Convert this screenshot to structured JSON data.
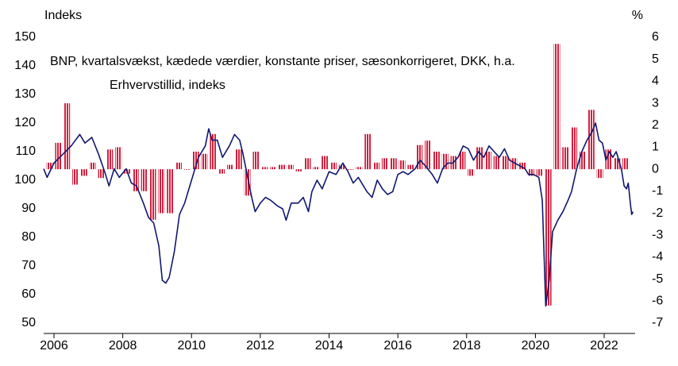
{
  "chart_data": {
    "type": "bar_line",
    "y_label": "Indeks",
    "y2_label": "%",
    "xlim": [
      2005.7,
      2022.9
    ],
    "xticks": [
      2006,
      2008,
      2010,
      2012,
      2014,
      2016,
      2018,
      2020,
      2022
    ],
    "ylim": [
      50,
      150
    ],
    "yticks": [
      50,
      60,
      70,
      80,
      90,
      100,
      110,
      120,
      130,
      140,
      150
    ],
    "y2lim": [
      -7,
      6
    ],
    "y2ticks": [
      -7,
      -6,
      -5,
      -4,
      -3,
      -2,
      -1,
      0,
      1,
      2,
      3,
      4,
      5,
      6
    ],
    "series": [
      {
        "name": "BNP, kvartalsvækst, kædede værdier, konstante priser, sæsonkorrigeret, DKK, h.a.",
        "type": "bar",
        "axis": "y2",
        "color": "#d0213f",
        "x": [
          2005.875,
          2006.125,
          2006.375,
          2006.625,
          2006.875,
          2007.125,
          2007.375,
          2007.625,
          2007.875,
          2008.125,
          2008.375,
          2008.625,
          2008.875,
          2009.125,
          2009.375,
          2009.625,
          2009.875,
          2010.125,
          2010.375,
          2010.625,
          2010.875,
          2011.125,
          2011.375,
          2011.625,
          2011.875,
          2012.125,
          2012.375,
          2012.625,
          2012.875,
          2013.125,
          2013.375,
          2013.625,
          2013.875,
          2014.125,
          2014.375,
          2014.625,
          2014.875,
          2015.125,
          2015.375,
          2015.625,
          2015.875,
          2016.125,
          2016.375,
          2016.625,
          2016.875,
          2017.125,
          2017.375,
          2017.625,
          2017.875,
          2018.125,
          2018.375,
          2018.625,
          2018.875,
          2019.125,
          2019.375,
          2019.625,
          2019.875,
          2020.125,
          2020.375,
          2020.625,
          2020.875,
          2021.125,
          2021.375,
          2021.625,
          2021.875,
          2022.125,
          2022.375,
          2022.625
        ],
        "values": [
          0.3,
          1.2,
          3.0,
          -0.7,
          -0.3,
          0.3,
          -0.4,
          0.9,
          1.0,
          -0.2,
          -1.0,
          -1.0,
          -2.3,
          -2.0,
          -2.0,
          0.3,
          0.0,
          0.8,
          0.7,
          1.6,
          -0.2,
          0.2,
          0.9,
          -1.2,
          0.8,
          0.1,
          0.1,
          0.2,
          0.2,
          -0.1,
          0.5,
          0.1,
          0.6,
          0.3,
          0.2,
          0.0,
          0.1,
          1.6,
          0.3,
          0.5,
          0.5,
          0.4,
          0.2,
          1.1,
          1.3,
          0.8,
          0.7,
          0.6,
          0.8,
          -0.3,
          1.0,
          0.8,
          0.6,
          0.6,
          0.5,
          0.3,
          -0.3,
          -0.3,
          -6.2,
          5.7,
          1.0,
          1.9,
          0.8,
          2.7,
          -0.4,
          0.9,
          0.5,
          0.5
        ]
      },
      {
        "name": "Erhvervstillid, indeks",
        "type": "line",
        "axis": "y",
        "color": "#10186e",
        "x": [
          2005.7,
          2005.8,
          2006.0,
          2006.25,
          2006.5,
          2006.75,
          2006.9,
          2007.1,
          2007.3,
          2007.5,
          2007.6,
          2007.75,
          2007.9,
          2008.1,
          2008.25,
          2008.4,
          2008.6,
          2008.75,
          2008.9,
          2009.05,
          2009.15,
          2009.25,
          2009.35,
          2009.5,
          2009.65,
          2009.8,
          2010.0,
          2010.2,
          2010.4,
          2010.5,
          2010.6,
          2010.75,
          2010.9,
          2011.1,
          2011.25,
          2011.4,
          2011.5,
          2011.6,
          2011.75,
          2011.85,
          2012.0,
          2012.15,
          2012.3,
          2012.5,
          2012.65,
          2012.75,
          2012.9,
          2013.1,
          2013.25,
          2013.4,
          2013.5,
          2013.65,
          2013.8,
          2014.0,
          2014.2,
          2014.4,
          2014.55,
          2014.7,
          2014.85,
          2015.0,
          2015.1,
          2015.25,
          2015.4,
          2015.55,
          2015.7,
          2015.85,
          2016.0,
          2016.15,
          2016.3,
          2016.5,
          2016.65,
          2016.8,
          2017.0,
          2017.15,
          2017.3,
          2017.45,
          2017.6,
          2017.75,
          2017.9,
          2018.05,
          2018.2,
          2018.35,
          2018.5,
          2018.65,
          2018.8,
          2018.95,
          2019.1,
          2019.25,
          2019.4,
          2019.55,
          2019.7,
          2019.8,
          2019.95,
          2020.1,
          2020.2,
          2020.3,
          2020.4,
          2020.5,
          2020.65,
          2020.8,
          2020.95,
          2021.05,
          2021.2,
          2021.35,
          2021.5,
          2021.65,
          2021.75,
          2021.85,
          2021.95,
          2022.05,
          2022.15,
          2022.25,
          2022.35,
          2022.5,
          2022.58,
          2022.65,
          2022.7,
          2022.76,
          2022.8,
          2022.84
        ],
        "values": [
          104,
          101,
          106,
          109,
          112,
          116,
          113,
          115,
          109,
          102,
          98,
          104,
          101,
          104,
          99,
          98,
          92,
          87,
          85,
          77,
          65,
          64,
          66,
          75,
          88,
          92,
          100,
          108,
          112,
          118,
          114,
          114,
          108,
          112,
          116,
          114,
          109,
          103,
          94,
          89,
          92,
          94,
          93,
          91,
          90,
          86,
          92,
          92,
          94,
          89,
          96,
          100,
          97,
          103,
          102,
          106,
          103,
          99,
          101,
          98,
          96,
          94,
          100,
          97,
          95,
          96,
          102,
          103,
          102,
          104,
          107,
          105,
          102,
          99,
          104,
          106,
          106,
          108,
          112,
          111,
          107,
          110,
          108,
          112,
          110,
          108,
          111,
          107,
          106,
          105,
          104,
          102,
          102,
          101,
          93,
          56,
          65,
          82,
          86,
          89,
          93,
          96,
          104,
          110,
          114,
          117,
          120,
          114,
          113,
          107,
          110,
          108,
          110,
          104,
          98,
          97,
          99,
          92,
          88,
          89
        ]
      }
    ]
  }
}
